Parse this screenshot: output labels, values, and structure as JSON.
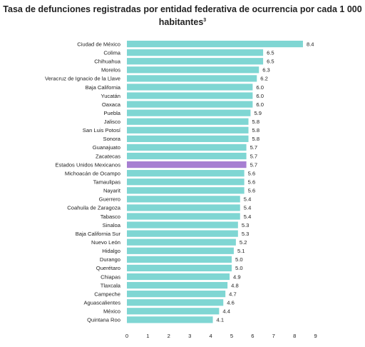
{
  "title_line1": "Tasa de defunciones registradas por entidad federativa de ocurrencia por cada 1 000",
  "title_line2": "habitantes",
  "title_sup": "3",
  "colors": {
    "bar": "#7FD6D3",
    "highlight": "#A77FD2",
    "text": "#222222"
  },
  "chart_data": {
    "type": "bar",
    "orientation": "horizontal",
    "title": "Tasa de defunciones registradas por entidad federativa de ocurrencia por cada 1 000 habitantes",
    "categories": [
      "Ciudad de México",
      "Colima",
      "Chihuahua",
      "Morelos",
      "Veracruz de Ignacio de la Llave",
      "Baja California",
      "Yucatán",
      "Oaxaca",
      "Puebla",
      "Jalisco",
      "San Luis Potosí",
      "Sonora",
      "Guanajuato",
      "Zacatecas",
      "Estados Unidos Mexicanos",
      "Michoacán de Ocampo",
      "Tamaulipas",
      "Nayarit",
      "Guerrero",
      "Coahuila de Zaragoza",
      "Tabasco",
      "Sinaloa",
      "Baja California Sur",
      "Nuevo León",
      "Hidalgo",
      "Durango",
      "Querétaro",
      "Chiapas",
      "Tlaxcala",
      "Campeche",
      "Aguascalientes",
      "México",
      "Quintana Roo"
    ],
    "values": [
      8.4,
      6.5,
      6.5,
      6.3,
      6.2,
      6.0,
      6.0,
      6.0,
      5.9,
      5.8,
      5.8,
      5.8,
      5.7,
      5.7,
      5.7,
      5.6,
      5.6,
      5.6,
      5.4,
      5.4,
      5.4,
      5.3,
      5.3,
      5.2,
      5.1,
      5.0,
      5.0,
      4.9,
      4.8,
      4.7,
      4.6,
      4.4,
      4.1
    ],
    "value_labels": [
      "8.4",
      "6.5",
      "6.5",
      "6.3",
      "6.2",
      "6.0",
      "6.0",
      "6.0",
      "5.9",
      "5.8",
      "5.8",
      "5.8",
      "5.7",
      "5.7",
      "5.7",
      "5.6",
      "5.6",
      "5.6",
      "5.4",
      "5.4",
      "5.4",
      "5.3",
      "5.3",
      "5.2",
      "5.1",
      "5.0",
      "5.0",
      "4.9",
      "4.8",
      "4.7",
      "4.6",
      "4.4",
      "4.1"
    ],
    "highlight_category": "Estados Unidos Mexicanos",
    "xlim": [
      0,
      9
    ],
    "xticks": [
      "0",
      "1",
      "2",
      "3",
      "4",
      "5",
      "6",
      "7",
      "8",
      "9"
    ],
    "grid": false,
    "legend": false
  }
}
